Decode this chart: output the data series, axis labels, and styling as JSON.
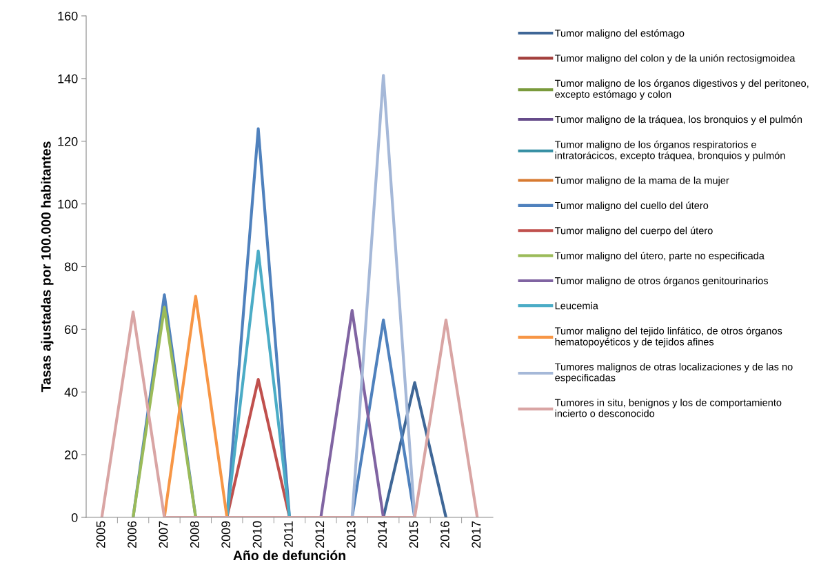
{
  "chart_data": {
    "type": "line",
    "xlabel": "Año de defunción",
    "ylabel": "Tasas ajustadas por 100.000 habitantes",
    "categories": [
      "2005",
      "2006",
      "2007",
      "2008",
      "2009",
      "2010",
      "2011",
      "2012",
      "2013",
      "2014",
      "2015",
      "2016",
      "2017"
    ],
    "ylim": [
      0,
      160
    ],
    "yticks": [
      0,
      20,
      40,
      60,
      80,
      100,
      120,
      140,
      160
    ],
    "grid": false,
    "legend": "right",
    "marker": "none",
    "line_style": "solid",
    "series": [
      {
        "name": "Tumor maligno del estómago",
        "color": "#3f6797",
        "values": [
          null,
          null,
          null,
          null,
          null,
          null,
          null,
          null,
          null,
          0,
          43,
          0,
          null
        ]
      },
      {
        "name": "Tumor maligno del colon y de la unión rectosigmoidea",
        "color": "#a33f3c",
        "values": [
          null,
          null,
          null,
          null,
          null,
          null,
          null,
          null,
          null,
          null,
          null,
          null,
          null
        ]
      },
      {
        "name": "Tumor maligno de los órganos digestivos y del peritoneo,\nexcepto estómago y colon",
        "color": "#7a9a3c",
        "values": [
          null,
          null,
          null,
          null,
          null,
          null,
          null,
          null,
          null,
          null,
          null,
          null,
          null
        ]
      },
      {
        "name": "Tumor maligno de la tráquea, los bronquios y el pulmón",
        "color": "#654b8a",
        "values": [
          null,
          null,
          null,
          null,
          null,
          null,
          null,
          null,
          null,
          null,
          null,
          null,
          null
        ]
      },
      {
        "name": "Tumor maligno de los órganos respiratorios e\nintratorácicos, excepto tráquea, bronquios y pulmón",
        "color": "#358fa3",
        "values": [
          null,
          null,
          null,
          null,
          null,
          null,
          null,
          null,
          null,
          null,
          null,
          null,
          null
        ]
      },
      {
        "name": "Tumor maligno de la mama de la mujer",
        "color": "#d77a30",
        "values": [
          null,
          null,
          null,
          null,
          null,
          null,
          null,
          null,
          null,
          null,
          null,
          null,
          null
        ]
      },
      {
        "name": "Tumor maligno del cuello del útero",
        "color": "#4f81bd",
        "values": [
          null,
          0,
          71,
          0,
          0,
          124,
          0,
          null,
          0,
          63,
          0,
          null,
          null
        ]
      },
      {
        "name": "Tumor maligno del cuerpo del útero",
        "color": "#c0504d",
        "values": [
          null,
          null,
          null,
          null,
          0,
          44,
          0,
          null,
          null,
          null,
          null,
          null,
          null
        ]
      },
      {
        "name": "Tumor maligno del útero, parte no especificada",
        "color": "#9bbb59",
        "values": [
          null,
          0,
          67,
          0,
          null,
          null,
          null,
          null,
          null,
          null,
          null,
          null,
          null
        ]
      },
      {
        "name": "Tumor maligno de otros órganos genitourinarios",
        "color": "#8064a2",
        "values": [
          null,
          null,
          null,
          null,
          null,
          null,
          null,
          0,
          66,
          0,
          null,
          null,
          null
        ]
      },
      {
        "name": "Leucemia",
        "color": "#4bacc6",
        "values": [
          null,
          null,
          null,
          null,
          0,
          85,
          0,
          null,
          null,
          null,
          null,
          null,
          null
        ]
      },
      {
        "name": "Tumor maligno del tejido linfático, de otros órganos\nhematopoyéticos y de tejidos afines",
        "color": "#f79646",
        "values": [
          null,
          null,
          0,
          70.5,
          0,
          null,
          null,
          null,
          null,
          null,
          null,
          null,
          null
        ]
      },
      {
        "name": "Tumores malignos de otras localizaciones y de las no\nespecificadas",
        "color": "#a5b8d8",
        "values": [
          null,
          null,
          null,
          null,
          null,
          null,
          null,
          null,
          0,
          141,
          0,
          null,
          null
        ]
      },
      {
        "name": "Tumores in situ, benignos y los de comportamiento\nincierto o desconocido",
        "color": "#d9a5a4",
        "values": [
          0,
          65.5,
          0,
          0,
          0,
          0,
          0,
          0,
          0,
          0,
          0,
          63,
          0
        ]
      }
    ]
  }
}
